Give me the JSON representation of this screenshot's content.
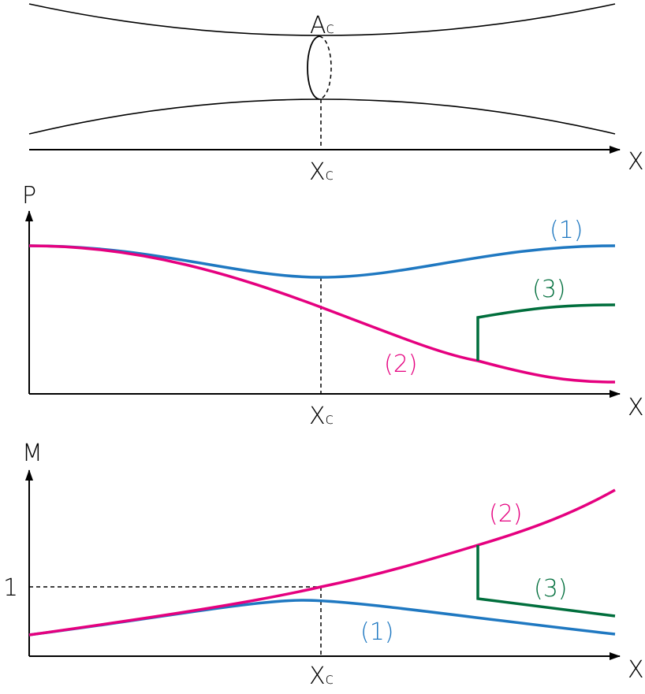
{
  "nozzle": {
    "area_label": {
      "main": "A",
      "sub": "c"
    },
    "throat_label": {
      "main": "X",
      "sub": "c"
    },
    "x_axis_label": "X"
  },
  "pressure_panel": {
    "y_axis_label": "P",
    "x_axis_label": "X",
    "throat_label": {
      "main": "X",
      "sub": "c"
    },
    "curve_labels": [
      "(1)",
      "(2)",
      "(3)"
    ]
  },
  "mach_panel": {
    "y_axis_label": "M",
    "x_axis_label": "X",
    "sonic_label": "1",
    "throat_label": {
      "main": "X",
      "sub": "c"
    },
    "curve_labels": [
      "(1)",
      "(2)",
      "(3)"
    ]
  }
}
